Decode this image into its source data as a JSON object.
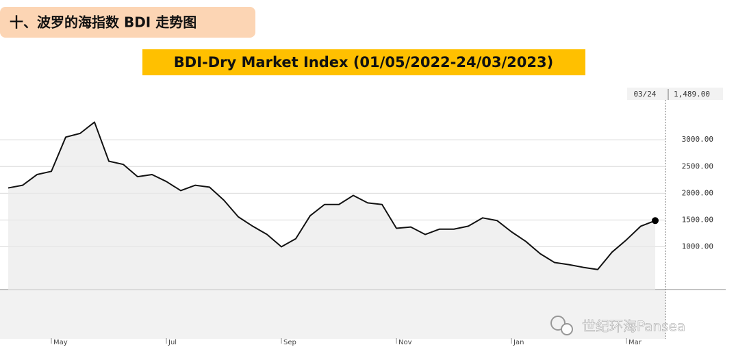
{
  "header": "十、波罗的海指数 BDI 走势图",
  "watermark": "世纪环海Pansea",
  "chart_data": {
    "type": "line",
    "title": "BDI-Dry Market Index (01/05/2022-24/03/2023)",
    "last_point_date": "03/24",
    "categories": [
      null,
      null,
      null,
      "May",
      null,
      null,
      null,
      null,
      null,
      null,
      null,
      "Jul",
      null,
      null,
      null,
      null,
      null,
      null,
      null,
      "Sep",
      null,
      null,
      null,
      null,
      null,
      null,
      null,
      "Nov",
      null,
      null,
      null,
      null,
      null,
      null,
      null,
      "Jan",
      null,
      null,
      null,
      null,
      null,
      null,
      null,
      "Mar",
      null,
      null
    ],
    "series": [
      {
        "name": "BDI",
        "color": "#111111",
        "values": [
          2100,
          2150,
          2350,
          2410,
          3050,
          3120,
          3330,
          2600,
          2540,
          2310,
          2350,
          2220,
          2050,
          2150,
          2115,
          1870,
          1560,
          1385,
          1230,
          1000,
          1150,
          1580,
          1790,
          1790,
          1960,
          1820,
          1790,
          1345,
          1370,
          1230,
          1330,
          1330,
          1385,
          1540,
          1490,
          1280,
          1100,
          870,
          705,
          665,
          615,
          575,
          900,
          1130,
          1385,
          1489
        ],
        "value_labels": [
          null,
          null,
          null,
          null,
          null,
          null,
          null,
          null,
          null,
          null,
          null,
          null,
          null,
          null,
          null,
          null,
          null,
          null,
          null,
          null,
          null,
          null,
          null,
          null,
          null,
          null,
          null,
          null,
          null,
          null,
          null,
          null,
          null,
          null,
          null,
          null,
          null,
          null,
          null,
          null,
          null,
          null,
          null,
          null,
          null,
          "1,489.00"
        ]
      }
    ],
    "ylim": [
      200,
      3950
    ],
    "yticks": [
      {
        "value": 1000,
        "label": "1000.00"
      },
      {
        "value": 1500,
        "label": "1500.00"
      },
      {
        "value": 2000,
        "label": "2000.00"
      },
      {
        "value": 2500,
        "label": "2500.00"
      },
      {
        "value": 3000,
        "label": "3000.00"
      }
    ],
    "grid": true
  }
}
